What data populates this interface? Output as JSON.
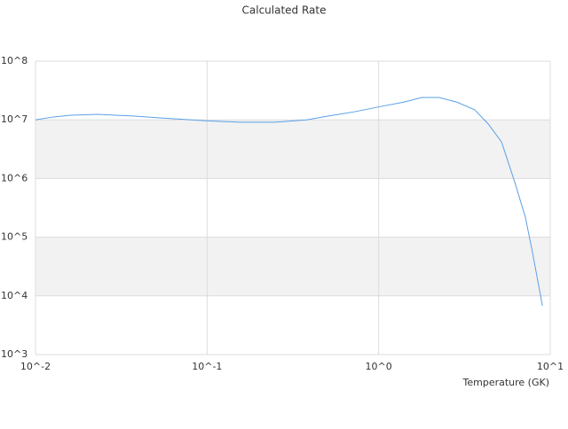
{
  "chart_data": {
    "type": "line",
    "title": "Calculated Rate",
    "xlabel": "Temperature (GK)",
    "xscale": "log",
    "yscale": "log",
    "grid": true,
    "alternate_bands": true,
    "xlim": [
      0.01,
      10
    ],
    "ylim": [
      1000,
      100000000
    ],
    "xticks": [
      {
        "value": 0.01,
        "label": "10^-2"
      },
      {
        "value": 0.1,
        "label": "10^-1"
      },
      {
        "value": 1,
        "label": "10^0"
      },
      {
        "value": 10,
        "label": "10^1"
      }
    ],
    "yticks": [
      {
        "value": 1000,
        "label": "10^3"
      },
      {
        "value": 10000,
        "label": "10^4"
      },
      {
        "value": 100000,
        "label": "10^5"
      },
      {
        "value": 1000000,
        "label": "10^6"
      },
      {
        "value": 10000000,
        "label": "10^7"
      },
      {
        "value": 100000000,
        "label": "10^8"
      }
    ],
    "series": [
      {
        "color": "#5aa0e8",
        "x": [
          0.01,
          0.0127,
          0.0161,
          0.023,
          0.037,
          0.053,
          0.096,
          0.155,
          0.25,
          0.38,
          0.51,
          0.73,
          1.04,
          1.4,
          1.78,
          2.26,
          2.86,
          3.63,
          4.35,
          5.2,
          6.2,
          7.16,
          7.88,
          9.0
        ],
        "values": [
          10000000,
          11200000,
          12000000,
          12400000,
          11600000,
          10800000,
          9700000,
          9100000,
          9100000,
          10000000,
          11600000,
          13800000,
          17000000,
          20000000,
          24000000,
          24000000,
          20000000,
          14800000,
          8500000,
          4200000,
          880000,
          220000,
          55000,
          6800
        ]
      }
    ]
  }
}
